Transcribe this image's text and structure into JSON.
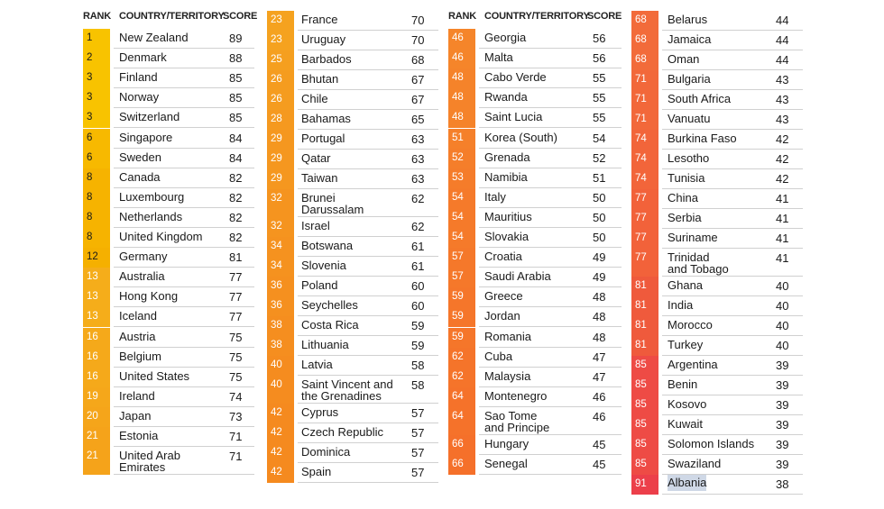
{
  "headers": {
    "rank": "RANK",
    "country": "COUNTRY/TERRITORY",
    "score": "SCORE"
  },
  "columns": [
    {
      "rows": [
        {
          "rank": "1",
          "country": "New Zealand",
          "score": "89",
          "color": "#f8c300",
          "text": "#1a1a1a"
        },
        {
          "rank": "2",
          "country": "Denmark",
          "score": "88",
          "color": "#f8c300",
          "text": "#1a1a1a"
        },
        {
          "rank": "3",
          "country": "Finland",
          "score": "85",
          "color": "#f8c300",
          "text": "#1a1a1a"
        },
        {
          "rank": "3",
          "country": "Norway",
          "score": "85",
          "color": "#f8c300",
          "text": "#1a1a1a"
        },
        {
          "rank": "3",
          "country": "Switzerland",
          "score": "85",
          "color": "#f8c300",
          "text": "#1a1a1a"
        },
        {
          "rank": "6",
          "country": "Singapore",
          "score": "84",
          "color": "#f7b900",
          "text": "#1a1a1a"
        },
        {
          "rank": "6",
          "country": "Sweden",
          "score": "84",
          "color": "#f7b900",
          "text": "#1a1a1a"
        },
        {
          "rank": "8",
          "country": "Canada",
          "score": "82",
          "color": "#f6b300",
          "text": "#1a1a1a"
        },
        {
          "rank": "8",
          "country": "Luxembourg",
          "score": "82",
          "color": "#f6b300",
          "text": "#1a1a1a"
        },
        {
          "rank": "8",
          "country": "Netherlands",
          "score": "82",
          "color": "#f6b300",
          "text": "#1a1a1a"
        },
        {
          "rank": "8",
          "country": "United Kingdom",
          "score": "82",
          "color": "#f6b300",
          "text": "#1a1a1a"
        },
        {
          "rank": "12",
          "country": "Germany",
          "score": "81",
          "color": "#f5b000",
          "text": "#1a1a1a"
        },
        {
          "rank": "13",
          "country": "Australia",
          "score": "77",
          "color": "#f5ad1a",
          "text": "#ffffff"
        },
        {
          "rank": "13",
          "country": "Hong Kong",
          "score": "77",
          "color": "#f5ad1a",
          "text": "#ffffff"
        },
        {
          "rank": "13",
          "country": "Iceland",
          "score": "77",
          "color": "#f5ad1a",
          "text": "#ffffff"
        },
        {
          "rank": "16",
          "country": "Austria",
          "score": "75",
          "color": "#f5a91a",
          "text": "#ffffff"
        },
        {
          "rank": "16",
          "country": "Belgium",
          "score": "75",
          "color": "#f5a91a",
          "text": "#ffffff"
        },
        {
          "rank": "16",
          "country": "United States",
          "score": "75",
          "color": "#f5a91a",
          "text": "#ffffff"
        },
        {
          "rank": "19",
          "country": "Ireland",
          "score": "74",
          "color": "#f5a71a",
          "text": "#ffffff"
        },
        {
          "rank": "20",
          "country": "Japan",
          "score": "73",
          "color": "#f5a51a",
          "text": "#ffffff"
        },
        {
          "rank": "21",
          "country": "Estonia",
          "score": "71",
          "color": "#f5a31a",
          "text": "#ffffff"
        },
        {
          "rank": "21",
          "country": "United Arab\nEmirates",
          "score": "71",
          "color": "#f5a31a",
          "text": "#ffffff"
        }
      ]
    },
    {
      "rows": [
        {
          "rank": "23",
          "country": "France",
          "score": "70",
          "color": "#f5a21f",
          "text": "#ffffff"
        },
        {
          "rank": "23",
          "country": "Uruguay",
          "score": "70",
          "color": "#f5a21f",
          "text": "#ffffff"
        },
        {
          "rank": "25",
          "country": "Barbados",
          "score": "68",
          "color": "#f59f1f",
          "text": "#ffffff"
        },
        {
          "rank": "26",
          "country": "Bhutan",
          "score": "67",
          "color": "#f59c1f",
          "text": "#ffffff"
        },
        {
          "rank": "26",
          "country": "Chile",
          "score": "67",
          "color": "#f59c1f",
          "text": "#ffffff"
        },
        {
          "rank": "28",
          "country": "Bahamas",
          "score": "65",
          "color": "#f5991f",
          "text": "#ffffff"
        },
        {
          "rank": "29",
          "country": "Portugal",
          "score": "63",
          "color": "#f5971f",
          "text": "#ffffff"
        },
        {
          "rank": "29",
          "country": "Qatar",
          "score": "63",
          "color": "#f5971f",
          "text": "#ffffff"
        },
        {
          "rank": "29",
          "country": "Taiwan",
          "score": "63",
          "color": "#f5971f",
          "text": "#ffffff"
        },
        {
          "rank": "32",
          "country": "Brunei\nDarussalam",
          "score": "62",
          "color": "#f5941f",
          "text": "#ffffff"
        },
        {
          "rank": "32",
          "country": "Israel",
          "score": "62",
          "color": "#f5941f",
          "text": "#ffffff"
        },
        {
          "rank": "34",
          "country": "Botswana",
          "score": "61",
          "color": "#f5921f",
          "text": "#ffffff"
        },
        {
          "rank": "34",
          "country": "Slovenia",
          "score": "61",
          "color": "#f5921f",
          "text": "#ffffff"
        },
        {
          "rank": "36",
          "country": "Poland",
          "score": "60",
          "color": "#f5901f",
          "text": "#ffffff"
        },
        {
          "rank": "36",
          "country": "Seychelles",
          "score": "60",
          "color": "#f5901f",
          "text": "#ffffff"
        },
        {
          "rank": "38",
          "country": "Costa Rica",
          "score": "59",
          "color": "#f58e1f",
          "text": "#ffffff"
        },
        {
          "rank": "38",
          "country": "Lithuania",
          "score": "59",
          "color": "#f58e1f",
          "text": "#ffffff"
        },
        {
          "rank": "40",
          "country": "Latvia",
          "score": "58",
          "color": "#f58c1f",
          "text": "#ffffff"
        },
        {
          "rank": "40",
          "country": "Saint Vincent and\nthe Grenadines",
          "score": "58",
          "color": "#f58c1f",
          "text": "#ffffff"
        },
        {
          "rank": "42",
          "country": "Cyprus",
          "score": "57",
          "color": "#f58a1f",
          "text": "#ffffff"
        },
        {
          "rank": "42",
          "country": "Czech Republic",
          "score": "57",
          "color": "#f58a1f",
          "text": "#ffffff"
        },
        {
          "rank": "42",
          "country": "Dominica",
          "score": "57",
          "color": "#f58a1f",
          "text": "#ffffff"
        },
        {
          "rank": "42",
          "country": "Spain",
          "score": "57",
          "color": "#f58a1f",
          "text": "#ffffff"
        }
      ]
    },
    {
      "rows": [
        {
          "rank": "46",
          "country": "Georgia",
          "score": "56",
          "color": "#f5852a",
          "text": "#ffffff"
        },
        {
          "rank": "46",
          "country": "Malta",
          "score": "56",
          "color": "#f5852a",
          "text": "#ffffff"
        },
        {
          "rank": "48",
          "country": "Cabo Verde",
          "score": "55",
          "color": "#f5832a",
          "text": "#ffffff"
        },
        {
          "rank": "48",
          "country": "Rwanda",
          "score": "55",
          "color": "#f5832a",
          "text": "#ffffff"
        },
        {
          "rank": "48",
          "country": "Saint Lucia",
          "score": "55",
          "color": "#f5832a",
          "text": "#ffffff"
        },
        {
          "rank": "51",
          "country": "Korea (South)",
          "score": "54",
          "color": "#f5802a",
          "text": "#ffffff"
        },
        {
          "rank": "52",
          "country": "Grenada",
          "score": "52",
          "color": "#f57e2a",
          "text": "#ffffff"
        },
        {
          "rank": "53",
          "country": "Namibia",
          "score": "51",
          "color": "#f57c2a",
          "text": "#ffffff"
        },
        {
          "rank": "54",
          "country": "Italy",
          "score": "50",
          "color": "#f57a2a",
          "text": "#ffffff"
        },
        {
          "rank": "54",
          "country": "Mauritius",
          "score": "50",
          "color": "#f57a2a",
          "text": "#ffffff"
        },
        {
          "rank": "54",
          "country": "Slovakia",
          "score": "50",
          "color": "#f57a2a",
          "text": "#ffffff"
        },
        {
          "rank": "57",
          "country": "Croatia",
          "score": "49",
          "color": "#f5782a",
          "text": "#ffffff"
        },
        {
          "rank": "57",
          "country": "Saudi Arabia",
          "score": "49",
          "color": "#f5782a",
          "text": "#ffffff"
        },
        {
          "rank": "59",
          "country": "Greece",
          "score": "48",
          "color": "#f5762a",
          "text": "#ffffff"
        },
        {
          "rank": "59",
          "country": "Jordan",
          "score": "48",
          "color": "#f5762a",
          "text": "#ffffff"
        },
        {
          "rank": "59",
          "country": "Romania",
          "score": "48",
          "color": "#f5762a",
          "text": "#ffffff"
        },
        {
          "rank": "62",
          "country": "Cuba",
          "score": "47",
          "color": "#f5742a",
          "text": "#ffffff"
        },
        {
          "rank": "62",
          "country": "Malaysia",
          "score": "47",
          "color": "#f5742a",
          "text": "#ffffff"
        },
        {
          "rank": "64",
          "country": "Montenegro",
          "score": "46",
          "color": "#f5722a",
          "text": "#ffffff"
        },
        {
          "rank": "64",
          "country": "Sao Tome\nand Principe",
          "score": "46",
          "color": "#f5722a",
          "text": "#ffffff"
        },
        {
          "rank": "66",
          "country": "Hungary",
          "score": "45",
          "color": "#f5702a",
          "text": "#ffffff"
        },
        {
          "rank": "66",
          "country": "Senegal",
          "score": "45",
          "color": "#f5702a",
          "text": "#ffffff"
        }
      ]
    },
    {
      "rows": [
        {
          "rank": "68",
          "country": "Belarus",
          "score": "44",
          "color": "#f26b3a",
          "text": "#ffffff"
        },
        {
          "rank": "68",
          "country": "Jamaica",
          "score": "44",
          "color": "#f26b3a",
          "text": "#ffffff"
        },
        {
          "rank": "68",
          "country": "Oman",
          "score": "44",
          "color": "#f26b3a",
          "text": "#ffffff"
        },
        {
          "rank": "71",
          "country": "Bulgaria",
          "score": "43",
          "color": "#f2683a",
          "text": "#ffffff"
        },
        {
          "rank": "71",
          "country": "South Africa",
          "score": "43",
          "color": "#f2683a",
          "text": "#ffffff"
        },
        {
          "rank": "71",
          "country": "Vanuatu",
          "score": "43",
          "color": "#f2683a",
          "text": "#ffffff"
        },
        {
          "rank": "74",
          "country": "Burkina Faso",
          "score": "42",
          "color": "#f2653a",
          "text": "#ffffff"
        },
        {
          "rank": "74",
          "country": "Lesotho",
          "score": "42",
          "color": "#f2653a",
          "text": "#ffffff"
        },
        {
          "rank": "74",
          "country": "Tunisia",
          "score": "42",
          "color": "#f2653a",
          "text": "#ffffff"
        },
        {
          "rank": "77",
          "country": "China",
          "score": "41",
          "color": "#f2623a",
          "text": "#ffffff"
        },
        {
          "rank": "77",
          "country": "Serbia",
          "score": "41",
          "color": "#f2623a",
          "text": "#ffffff"
        },
        {
          "rank": "77",
          "country": "Suriname",
          "score": "41",
          "color": "#f2623a",
          "text": "#ffffff"
        },
        {
          "rank": "77",
          "country": "Trinidad\nand Tobago",
          "score": "41",
          "color": "#f2623a",
          "text": "#ffffff"
        },
        {
          "rank": "81",
          "country": "Ghana",
          "score": "40",
          "color": "#ef5a3c",
          "text": "#ffffff"
        },
        {
          "rank": "81",
          "country": "India",
          "score": "40",
          "color": "#ef5a3c",
          "text": "#ffffff"
        },
        {
          "rank": "81",
          "country": "Morocco",
          "score": "40",
          "color": "#ef5a3c",
          "text": "#ffffff"
        },
        {
          "rank": "81",
          "country": "Turkey",
          "score": "40",
          "color": "#ef5a3c",
          "text": "#ffffff"
        },
        {
          "rank": "85",
          "country": "Argentina",
          "score": "39",
          "color": "#ee4b45",
          "text": "#ffffff"
        },
        {
          "rank": "85",
          "country": "Benin",
          "score": "39",
          "color": "#ee4b45",
          "text": "#ffffff"
        },
        {
          "rank": "85",
          "country": "Kosovo",
          "score": "39",
          "color": "#ee4b45",
          "text": "#ffffff"
        },
        {
          "rank": "85",
          "country": "Kuwait",
          "score": "39",
          "color": "#ee4b45",
          "text": "#ffffff"
        },
        {
          "rank": "85",
          "country": "Solomon Islands",
          "score": "39",
          "color": "#ee4b45",
          "text": "#ffffff"
        },
        {
          "rank": "85",
          "country": "Swaziland",
          "score": "39",
          "color": "#ee4b45",
          "text": "#ffffff"
        },
        {
          "rank": "91",
          "country": "Albania",
          "score": "38",
          "color": "#ec3f4a",
          "text": "#ffffff",
          "highlight": true
        }
      ]
    }
  ]
}
